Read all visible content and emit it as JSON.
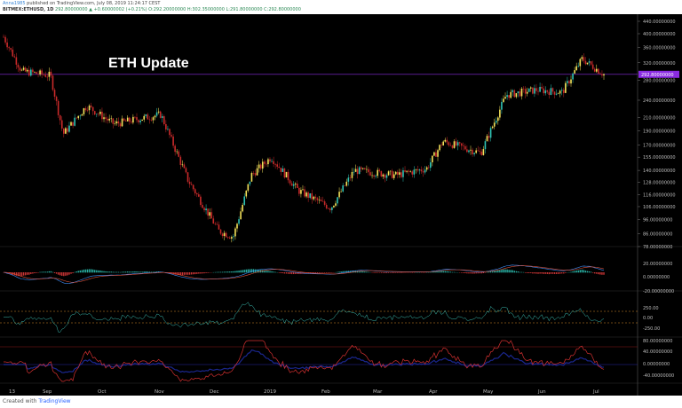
{
  "header": {
    "author": "Anna1985",
    "published": "published on TradingView.com, July 08, 2019 11:24:17 CEST",
    "symbol": "BITMEX:ETHUSD, 1D",
    "ohlc": "292.80000000 ▲ +0.60000002 (+0.21%) O:292.20000000 H:302.35000000 L:291.80000000 C:292.80000000"
  },
  "footer": {
    "created_with": "Created with",
    "brand": "TradingView"
  },
  "annotation": {
    "title": "ETH Update"
  },
  "price_axis": {
    "ticks": [
      "440.00000000",
      "400.00000000",
      "360.00000000",
      "320.00000000",
      "280.00000000",
      "240.00000000",
      "210.00000000",
      "190.00000000",
      "170.00000000",
      "155.00000000",
      "140.00000000",
      "128.00000000",
      "116.00000000",
      "106.00000000",
      "96.00000000",
      "86.00000000",
      "78.00000000"
    ],
    "last_price": "292.80000000"
  },
  "macd_axis": {
    "ticks": [
      "20.00000000",
      "0.00000000",
      "-20.00000000"
    ]
  },
  "cci_axis": {
    "ticks": [
      "250.00",
      "0.00",
      "-250.00"
    ]
  },
  "osc_axis": {
    "ticks": [
      "80.00000000",
      "40.00000000",
      "0.00000000",
      "-40.00000000"
    ]
  },
  "time_axis": {
    "labels": [
      "13",
      "Sep",
      "Oct",
      "Nov",
      "Dec",
      "2019",
      "Feb",
      "Mar",
      "Apr",
      "May",
      "Jun",
      "Jul"
    ]
  },
  "colors": {
    "up": "#f5e35a",
    "up_alt": "#2ec4b6",
    "down": "#c92a2a",
    "macd_line": "#3e8ef7",
    "signal_line": "#e0523a",
    "hist_up": "#2ec4b6",
    "hist_down": "#e03b3b",
    "cci": "#3cc0b5",
    "osc_red": "#d33030",
    "osc_blue": "#2030b0",
    "price_line": "#8a2be2"
  },
  "chart_data": {
    "type": "candlestick",
    "title": "ETH Update",
    "symbol": "BITMEX:ETHUSD",
    "interval": "1D",
    "x_range": [
      "2018-08",
      "2019-07"
    ],
    "ylim": [
      78,
      440
    ],
    "y_scale": "log",
    "last_price": 292.8,
    "close_path_approx": [
      {
        "date": "2018-08-10",
        "close": 390
      },
      {
        "date": "2018-08-20",
        "close": 300
      },
      {
        "date": "2018-09-05",
        "close": 290
      },
      {
        "date": "2018-09-12",
        "close": 185
      },
      {
        "date": "2018-09-25",
        "close": 230
      },
      {
        "date": "2018-10-10",
        "close": 200
      },
      {
        "date": "2018-11-05",
        "close": 215
      },
      {
        "date": "2018-11-20",
        "close": 130
      },
      {
        "date": "2018-12-07",
        "close": 88
      },
      {
        "date": "2018-12-15",
        "close": 84
      },
      {
        "date": "2018-12-25",
        "close": 135
      },
      {
        "date": "2019-01-05",
        "close": 155
      },
      {
        "date": "2019-01-20",
        "close": 120
      },
      {
        "date": "2019-02-07",
        "close": 105
      },
      {
        "date": "2019-02-20",
        "close": 140
      },
      {
        "date": "2019-03-15",
        "close": 135
      },
      {
        "date": "2019-04-01",
        "close": 142
      },
      {
        "date": "2019-04-10",
        "close": 175
      },
      {
        "date": "2019-05-01",
        "close": 160
      },
      {
        "date": "2019-05-15",
        "close": 250
      },
      {
        "date": "2019-06-01",
        "close": 260
      },
      {
        "date": "2019-06-15",
        "close": 255
      },
      {
        "date": "2019-06-26",
        "close": 330
      },
      {
        "date": "2019-07-08",
        "close": 292.8
      }
    ]
  }
}
